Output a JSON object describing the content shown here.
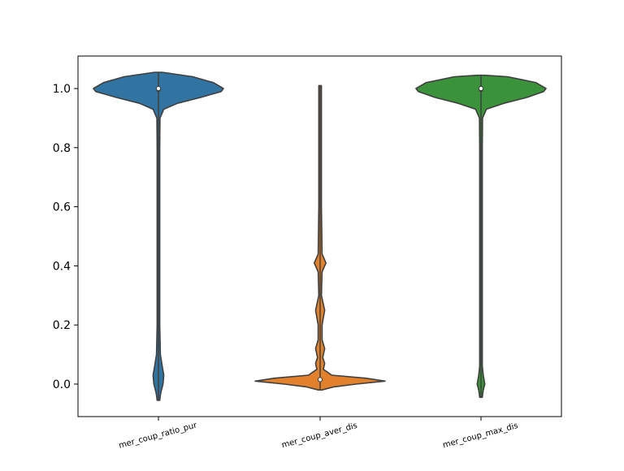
{
  "chart_data": {
    "type": "violin",
    "title": "",
    "xlabel": "",
    "ylabel": "",
    "ylim": [
      -0.11,
      1.11
    ],
    "yticks": [
      0.0,
      0.2,
      0.4,
      0.6,
      0.8,
      1.0
    ],
    "ytick_labels": [
      "0.0",
      "0.2",
      "0.4",
      "0.6",
      "0.8",
      "1.0"
    ],
    "grid": false,
    "legend": "none",
    "categories": [
      "mer_coup_ratio_pur",
      "mer_coup_aver_dis",
      "mer_coup_max_dis"
    ],
    "series": [
      {
        "category": "mer_coup_ratio_pur",
        "color": "#3274a1",
        "min": -0.055,
        "max": 1.055,
        "median": 1.0,
        "q1": 0.99,
        "q3": 1.0,
        "density": [
          [
            -0.055,
            0.005
          ],
          [
            -0.03,
            0.03
          ],
          [
            0.0,
            0.06
          ],
          [
            0.03,
            0.07
          ],
          [
            0.06,
            0.05
          ],
          [
            0.1,
            0.025
          ],
          [
            0.2,
            0.012
          ],
          [
            0.4,
            0.01
          ],
          [
            0.6,
            0.01
          ],
          [
            0.8,
            0.012
          ],
          [
            0.9,
            0.02
          ],
          [
            0.93,
            0.07
          ],
          [
            0.95,
            0.25
          ],
          [
            0.97,
            0.55
          ],
          [
            0.99,
            0.82
          ],
          [
            1.0,
            0.85
          ],
          [
            1.02,
            0.72
          ],
          [
            1.04,
            0.45
          ],
          [
            1.055,
            0.05
          ]
        ]
      },
      {
        "category": "mer_coup_aver_dis",
        "color": "#e1812c",
        "min": -0.02,
        "max": 1.01,
        "median": 0.015,
        "q1": 0.01,
        "q3": 0.02,
        "density": [
          [
            -0.02,
            0.03
          ],
          [
            -0.01,
            0.2
          ],
          [
            0.0,
            0.55
          ],
          [
            0.01,
            1.0
          ],
          [
            0.02,
            0.7
          ],
          [
            0.03,
            0.18
          ],
          [
            0.05,
            0.05
          ],
          [
            0.07,
            0.07
          ],
          [
            0.09,
            0.04
          ],
          [
            0.12,
            0.07
          ],
          [
            0.15,
            0.03
          ],
          [
            0.2,
            0.03
          ],
          [
            0.25,
            0.07
          ],
          [
            0.3,
            0.02
          ],
          [
            0.38,
            0.03
          ],
          [
            0.41,
            0.09
          ],
          [
            0.44,
            0.03
          ],
          [
            0.6,
            0.02
          ],
          [
            0.8,
            0.02
          ],
          [
            1.01,
            0.02
          ]
        ]
      },
      {
        "category": "mer_coup_max_dis",
        "color": "#3a923a",
        "min": -0.045,
        "max": 1.045,
        "median": 1.0,
        "q1": 0.99,
        "q3": 1.0,
        "density": [
          [
            -0.045,
            0.005
          ],
          [
            -0.02,
            0.03
          ],
          [
            0.0,
            0.05
          ],
          [
            0.03,
            0.03
          ],
          [
            0.06,
            0.015
          ],
          [
            0.2,
            0.01
          ],
          [
            0.5,
            0.01
          ],
          [
            0.8,
            0.01
          ],
          [
            0.9,
            0.02
          ],
          [
            0.93,
            0.07
          ],
          [
            0.95,
            0.3
          ],
          [
            0.97,
            0.6
          ],
          [
            0.99,
            0.82
          ],
          [
            1.0,
            0.85
          ],
          [
            1.02,
            0.72
          ],
          [
            1.04,
            0.35
          ],
          [
            1.045,
            0.05
          ]
        ]
      }
    ]
  }
}
